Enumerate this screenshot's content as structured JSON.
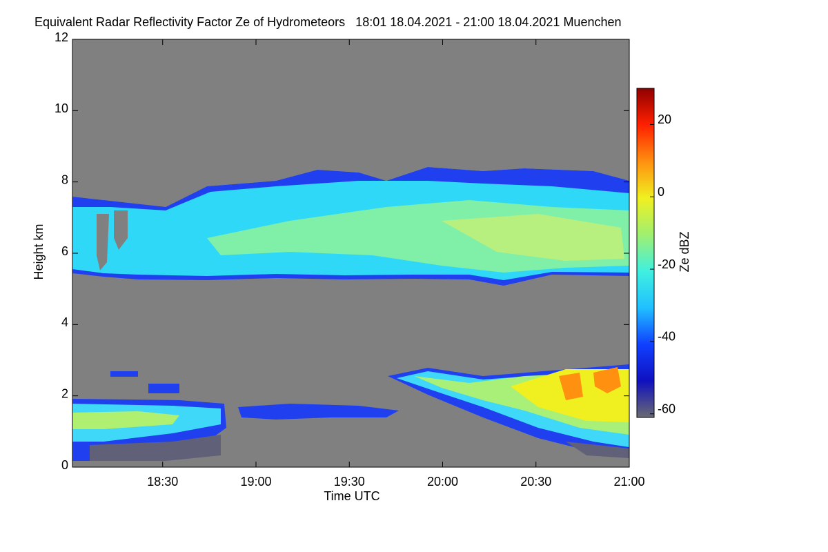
{
  "chart_data": {
    "type": "heatmap",
    "title": "Equivalent Radar Reflectivity Factor Ze of Hydrometeors   18:01 18.04.2021 - 21:00 18.04.2021 Muenchen",
    "x_label": "Time UTC",
    "y_label": "Height km",
    "colorbar_label": "Ze dBZ",
    "xlim": [
      1,
      180
    ],
    "xticks": [
      {
        "value": 30,
        "label": "18:30"
      },
      {
        "value": 60,
        "label": "19:00"
      },
      {
        "value": 90,
        "label": "19:30"
      },
      {
        "value": 120,
        "label": "20:00"
      },
      {
        "value": 150,
        "label": "20:30"
      },
      {
        "value": 180,
        "label": "21:00"
      }
    ],
    "ylim": [
      0,
      12
    ],
    "yticks": [
      0,
      2,
      4,
      6,
      8,
      10,
      12
    ],
    "clim": [
      -61,
      30
    ],
    "cticks": [
      -60,
      -40,
      -20,
      0,
      20
    ],
    "colormap": [
      "#6a6a72",
      "#1010c0",
      "#1040ff",
      "#20c0ff",
      "#40f0e0",
      "#a0f070",
      "#f0f020",
      "#ff9010",
      "#ff2000",
      "#900000"
    ]
  }
}
